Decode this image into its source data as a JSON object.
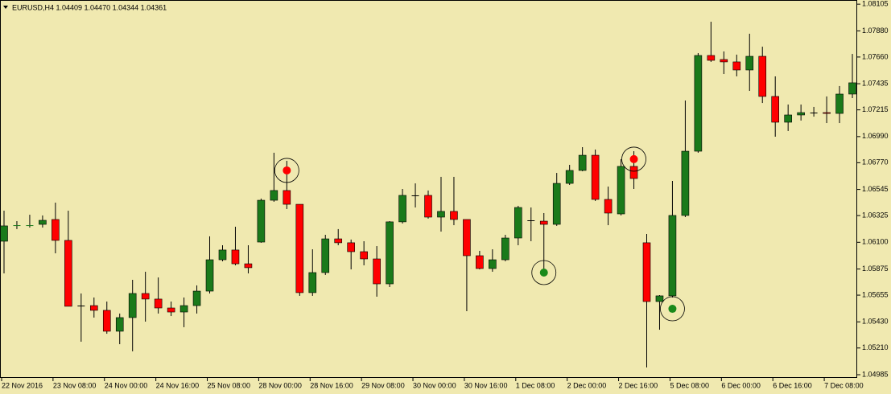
{
  "chart_data": {
    "type": "candlestick",
    "title": "EURUSD,H4  1.04409 1.04470 1.04344 1.04361",
    "categories": [
      "22 Nov 2016",
      null,
      null,
      null,
      "23 Nov 08:00",
      null,
      null,
      null,
      "24 Nov 00:00",
      null,
      null,
      null,
      "24 Nov 16:00",
      null,
      null,
      null,
      "25 Nov 08:00",
      null,
      null,
      null,
      "28 Nov 00:00",
      null,
      null,
      null,
      "28 Nov 16:00",
      null,
      null,
      null,
      "29 Nov 08:00",
      null,
      null,
      null,
      "30 Nov 00:00",
      null,
      null,
      null,
      "30 Nov 16:00",
      null,
      null,
      null,
      "1 Dec 08:00",
      null,
      null,
      null,
      "2 Dec 00:00",
      null,
      null,
      null,
      "2 Dec 16:00",
      null,
      null,
      null,
      "5 Dec 08:00",
      null,
      null,
      null,
      "6 Dec 00:00",
      null,
      null,
      null,
      "6 Dec 16:00",
      null,
      null,
      null,
      "7 Dec 08:00",
      null,
      null
    ],
    "open": [
      1.06109,
      1.06238,
      1.06238,
      1.06251,
      1.06292,
      1.06116,
      1.05567,
      1.05567,
      1.05527,
      1.05351,
      1.05466,
      1.05669,
      1.05622,
      1.05547,
      1.05513,
      1.05567,
      1.05689,
      1.05953,
      1.06035,
      1.05919,
      1.06102,
      1.06454,
      1.06536,
      1.0642,
      1.05676,
      1.05845,
      1.06129,
      1.06096,
      1.06021,
      1.0596,
      1.0575,
      1.06272,
      1.06495,
      1.06495,
      1.06312,
      1.0636,
      1.06292,
      1.05987,
      1.05879,
      1.05953,
      1.06136,
      1.06285,
      1.06278,
      1.06251,
      1.06596,
      1.06705,
      1.06833,
      1.06461,
      1.06339,
      1.06739,
      1.06096,
      1.05601,
      1.05649,
      1.06326,
      1.06867,
      1.07673,
      1.07639,
      1.07619,
      1.07551,
      1.07666,
      1.07328,
      1.07111,
      1.07172,
      1.07192,
      1.07192,
      1.07185,
      1.07348
    ],
    "high": [
      1.06366,
      1.06278,
      1.06332,
      1.06326,
      1.06434,
      1.06366,
      1.05669,
      1.05635,
      1.05601,
      1.055,
      1.05784,
      1.05852,
      1.05804,
      1.05601,
      1.05635,
      1.05737,
      1.0615,
      1.06075,
      1.06231,
      1.06075,
      1.06468,
      1.06854,
      1.06786,
      1.0642,
      1.06041,
      1.06163,
      1.06211,
      1.06123,
      1.06109,
      1.06068,
      1.06278,
      1.06549,
      1.06596,
      1.06536,
      1.06651,
      1.06651,
      1.06292,
      1.06028,
      1.06041,
      1.06163,
      1.06407,
      1.06393,
      1.06346,
      1.06684,
      1.06752,
      1.06901,
      1.06881,
      1.06569,
      1.068,
      1.06867,
      1.0617,
      1.05655,
      1.06617,
      1.07294,
      1.07693,
      1.07957,
      1.07707,
      1.0768,
      1.07856,
      1.07747,
      1.07497,
      1.0726,
      1.0726,
      1.0724,
      1.07328,
      1.07416,
      1.07686
    ],
    "low": [
      1.05838,
      1.06211,
      1.06224,
      1.06224,
      1.06007,
      1.05561,
      1.05263,
      1.05466,
      1.0533,
      1.05242,
      1.05182,
      1.05432,
      1.055,
      1.05479,
      1.05385,
      1.055,
      1.05669,
      1.0594,
      1.05906,
      1.05838,
      1.06096,
      1.06441,
      1.0638,
      1.05649,
      1.05649,
      1.05825,
      1.06075,
      1.05872,
      1.05906,
      1.05642,
      1.05723,
      1.06258,
      1.06393,
      1.06299,
      1.0619,
      1.06244,
      1.0552,
      1.05872,
      1.05852,
      1.0594,
      1.06075,
      1.06109,
      1.05845,
      1.06238,
      1.06583,
      1.06698,
      1.06448,
      1.06244,
      1.06326,
      1.06549,
      1.05046,
      1.05364,
      1.05635,
      1.06312,
      1.06854,
      1.07619,
      1.07517,
      1.07497,
      1.07375,
      1.07273,
      1.06989,
      1.07037,
      1.07125,
      1.07158,
      1.07104,
      1.07104,
      1.07314
    ],
    "close": [
      1.06238,
      1.06244,
      1.06244,
      1.06285,
      1.06116,
      1.05561,
      1.05567,
      1.05527,
      1.05351,
      1.05466,
      1.05669,
      1.05622,
      1.05547,
      1.05513,
      1.05567,
      1.05689,
      1.05953,
      1.06035,
      1.05919,
      1.05886,
      1.06454,
      1.06536,
      1.0642,
      1.05676,
      1.05845,
      1.06129,
      1.06096,
      1.06021,
      1.0596,
      1.0575,
      1.06272,
      1.06495,
      1.06495,
      1.06312,
      1.0636,
      1.06292,
      1.05987,
      1.05879,
      1.05953,
      1.06136,
      1.06393,
      1.06285,
      1.06251,
      1.06596,
      1.06705,
      1.06833,
      1.06461,
      1.06346,
      1.06739,
      1.06637,
      1.05601,
      1.05649,
      1.06326,
      1.06867,
      1.07673,
      1.07632,
      1.07619,
      1.07551,
      1.07666,
      1.07328,
      1.07111,
      1.07172,
      1.07192,
      1.07192,
      1.07185,
      1.07348,
      1.07443
    ],
    "up_color": "#1a7a1a",
    "down_color": "#ff0000",
    "markers": [
      {
        "x": 22,
        "y": 1.06705,
        "color": "#ff0000"
      },
      {
        "x": 42,
        "y": 1.05845,
        "color": "#1a8a1a"
      },
      {
        "x": 49,
        "y": 1.068,
        "color": "#ff0000"
      },
      {
        "x": 52,
        "y": 1.0554,
        "color": "#1a8a1a"
      }
    ],
    "ylim": [
      1.04958,
      1.0814
    ],
    "yticks": [
      1.08105,
      {
        "value": 1.0788,
        "label": "1.07880"
      },
      {
        "value": 1.0766,
        "label": "1.07660"
      },
      1.07435,
      1.07215,
      {
        "value": 1.0699,
        "label": "1.06990"
      },
      {
        "value": 1.0677,
        "label": "1.06770"
      },
      1.06545,
      1.06325,
      {
        "value": 1.061,
        "label": "1.06100"
      },
      1.05875,
      1.05655,
      {
        "value": 1.0543,
        "label": "1.05430"
      },
      {
        "value": 1.0521,
        "label": "1.05210"
      },
      1.04985
    ]
  }
}
